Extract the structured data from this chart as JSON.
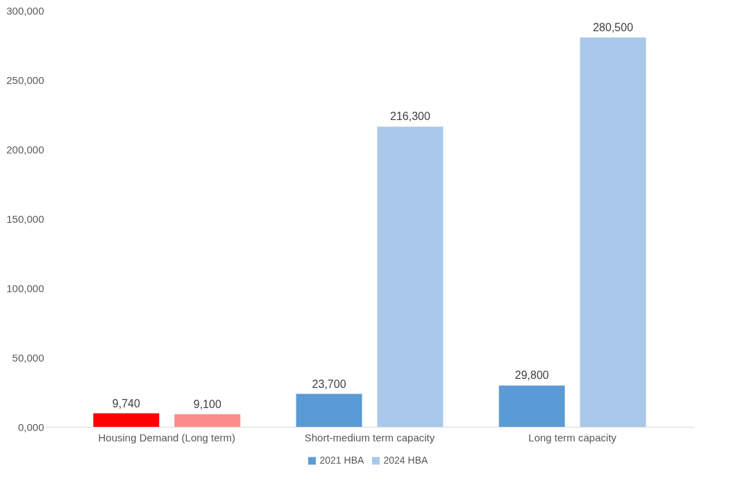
{
  "chart_data": {
    "type": "bar",
    "categories": [
      "Housing Demand (Long term)",
      "Short-medium term capacity",
      "Long term capacity"
    ],
    "series": [
      {
        "name": "2021 HBA",
        "color": "#5b9bd5",
        "colors": [
          "#ff0000",
          "#5b9bd5",
          "#5b9bd5"
        ],
        "values": [
          9740,
          23700,
          29800
        ],
        "value_labels": [
          "9,740",
          "23,700",
          "29,800"
        ]
      },
      {
        "name": "2024 HBA",
        "color": "#a9c8ea",
        "colors": [
          "#ff8c8c",
          "#a9c8ea",
          "#a9c8ea"
        ],
        "values": [
          9100,
          216300,
          280500
        ],
        "value_labels": [
          "9,100",
          "216,300",
          "280,500"
        ]
      }
    ],
    "ylim": [
      0,
      300000
    ],
    "yticks": [
      {
        "value": 0,
        "label": "0,000"
      },
      {
        "value": 50000,
        "label": "50,000"
      },
      {
        "value": 100000,
        "label": "100,000"
      },
      {
        "value": 150000,
        "label": "150,000"
      },
      {
        "value": 200000,
        "label": "200,000"
      },
      {
        "value": 250000,
        "label": "250,000"
      },
      {
        "value": 300000,
        "label": "300,000"
      }
    ],
    "legend": "bottom",
    "grid": false
  }
}
